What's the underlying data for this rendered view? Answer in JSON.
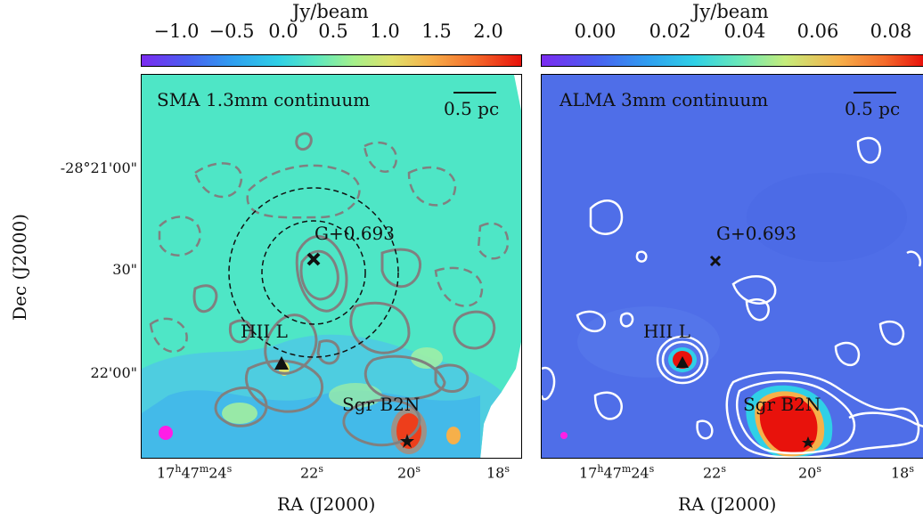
{
  "colorbars": {
    "left": {
      "title": "Jy/beam",
      "ticks": [
        "−1.0",
        "−0.5",
        "0.0",
        "0.5",
        "1.0",
        "1.5",
        "2.0"
      ]
    },
    "right": {
      "title": "Jy/beam",
      "ticks": [
        "0.00",
        "0.02",
        "0.04",
        "0.06",
        "0.08"
      ]
    }
  },
  "panels": {
    "left": {
      "title": "SMA 1.3mm continuum",
      "scalebar": "0.5 pc",
      "labels": {
        "source": "G+0.693",
        "hii": "HII L",
        "sgr": "Sgr B2N"
      }
    },
    "right": {
      "title": "ALMA 3mm continuum",
      "scalebar": "0.5 pc",
      "labels": {
        "source": "G+0.693",
        "hii": "HII L",
        "sgr": "Sgr B2N"
      }
    }
  },
  "axes": {
    "xlabel": "RA (J2000)",
    "ylabel": "Dec (J2000)",
    "yticks": [
      "-28°21'00\"",
      "30\"",
      "22'00\""
    ],
    "left_xticks": {
      "first_main": "17",
      "first_h": "h",
      "first_mid": "47",
      "first_m": "m",
      "first_tail": "24",
      "first_s": "s",
      "t2": "22",
      "t3": "20",
      "t4": "18",
      "s": "s"
    },
    "right_xticks": {
      "first_main": "17",
      "first_h": "h",
      "first_mid": "47",
      "first_m": "m",
      "first_tail": "24",
      "first_s": "s",
      "t2": "22",
      "t3": "20",
      "t4": "18",
      "s": "s"
    }
  },
  "colors": {
    "left_background": "#4ee6c6",
    "right_background": "#4f6ee8",
    "contour_gray": "#808080",
    "contour_white": "#ffffff",
    "beam_magenta": "#ff1ee6",
    "hot_red": "#e8120c"
  }
}
